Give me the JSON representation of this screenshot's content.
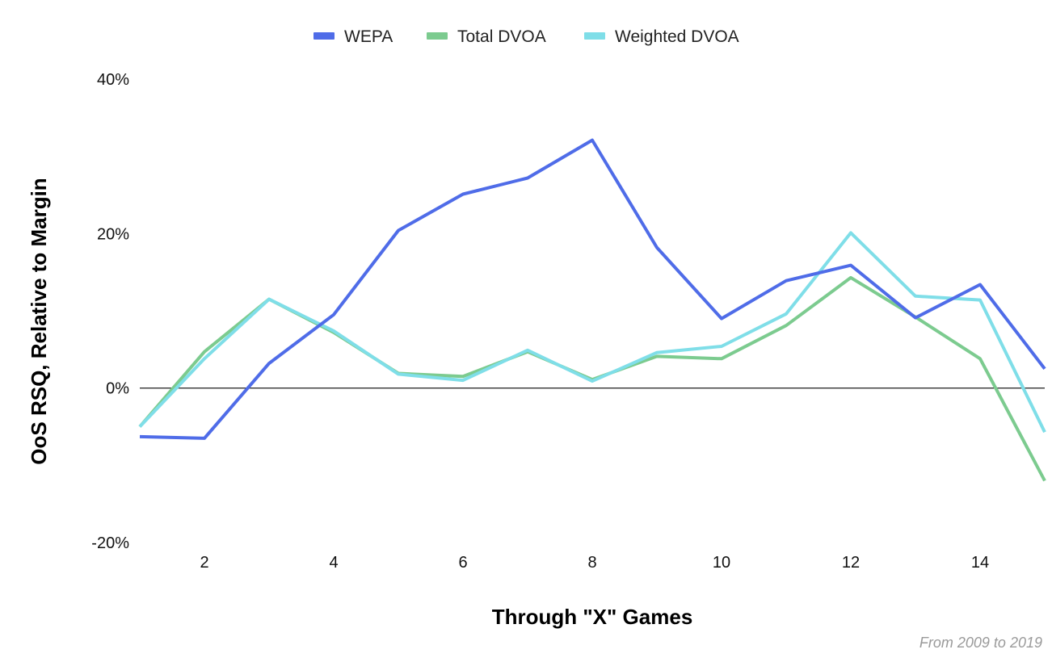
{
  "chart_data": {
    "type": "line",
    "title": "",
    "xlabel": "Through \"X\" Games",
    "ylabel": "OoS RSQ, Relative to Margin",
    "source_note": "From 2009 to 2019",
    "x": [
      1,
      2,
      3,
      4,
      5,
      6,
      7,
      8,
      9,
      10,
      11,
      12,
      13,
      14,
      15
    ],
    "xticks": [
      2,
      4,
      6,
      8,
      10,
      12,
      14
    ],
    "xtick_labels": [
      "2",
      "4",
      "6",
      "8",
      "10",
      "12",
      "14"
    ],
    "xlim": [
      1,
      15
    ],
    "ylim": [
      -20,
      40
    ],
    "yticks": [
      -20,
      0,
      20,
      40
    ],
    "ytick_labels": [
      "-20%",
      "0%",
      "20%",
      "40%"
    ],
    "legend_position": "top",
    "series": [
      {
        "name": "WEPA",
        "color": "#4f6ce8",
        "values": [
          -6.3,
          -6.5,
          3.2,
          9.5,
          20.4,
          25.1,
          27.2,
          32.1,
          18.2,
          9.0,
          13.9,
          15.9,
          9.1,
          13.4,
          2.5
        ]
      },
      {
        "name": "Total DVOA",
        "color": "#7ccb8f",
        "values": [
          -5.0,
          4.7,
          11.5,
          7.2,
          1.9,
          1.5,
          4.7,
          1.1,
          4.1,
          3.8,
          8.1,
          14.3,
          9.2,
          3.8,
          -12.0
        ]
      },
      {
        "name": "Weighted DVOA",
        "color": "#7fdee8",
        "values": [
          -5.0,
          3.8,
          11.5,
          7.4,
          1.8,
          1.0,
          4.9,
          0.9,
          4.6,
          5.4,
          9.6,
          20.1,
          11.9,
          11.4,
          -5.7
        ]
      }
    ]
  }
}
